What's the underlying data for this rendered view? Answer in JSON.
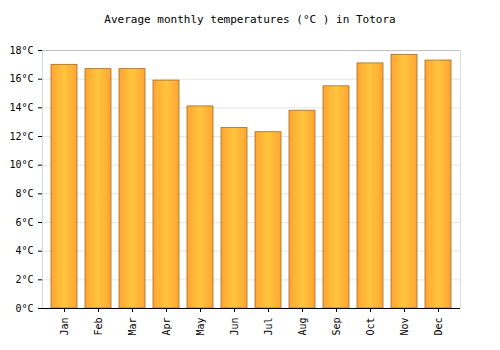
{
  "chart_data": {
    "type": "bar",
    "title": "Average monthly temperatures (°C ) in Totora",
    "categories": [
      "Jan",
      "Feb",
      "Mar",
      "Apr",
      "May",
      "Jun",
      "Jul",
      "Aug",
      "Sep",
      "Oct",
      "Nov",
      "Dec"
    ],
    "values": [
      17.0,
      16.7,
      16.7,
      15.9,
      14.1,
      12.6,
      12.3,
      13.8,
      15.5,
      17.1,
      17.7,
      17.3
    ],
    "color": "#ffa533",
    "ylim": [
      0,
      18
    ],
    "yticks": [
      {
        "value": 0,
        "label": "0°C"
      },
      {
        "value": 2,
        "label": "2°C"
      },
      {
        "value": 4,
        "label": "4°C"
      },
      {
        "value": 6,
        "label": "6°C"
      },
      {
        "value": 8,
        "label": "8°C"
      },
      {
        "value": 10,
        "label": "10°C"
      },
      {
        "value": 12,
        "label": "12°C"
      },
      {
        "value": 14,
        "label": "14°C"
      },
      {
        "value": 16,
        "label": "16°C"
      },
      {
        "value": 18,
        "label": "18°C"
      }
    ],
    "grid": true
  }
}
